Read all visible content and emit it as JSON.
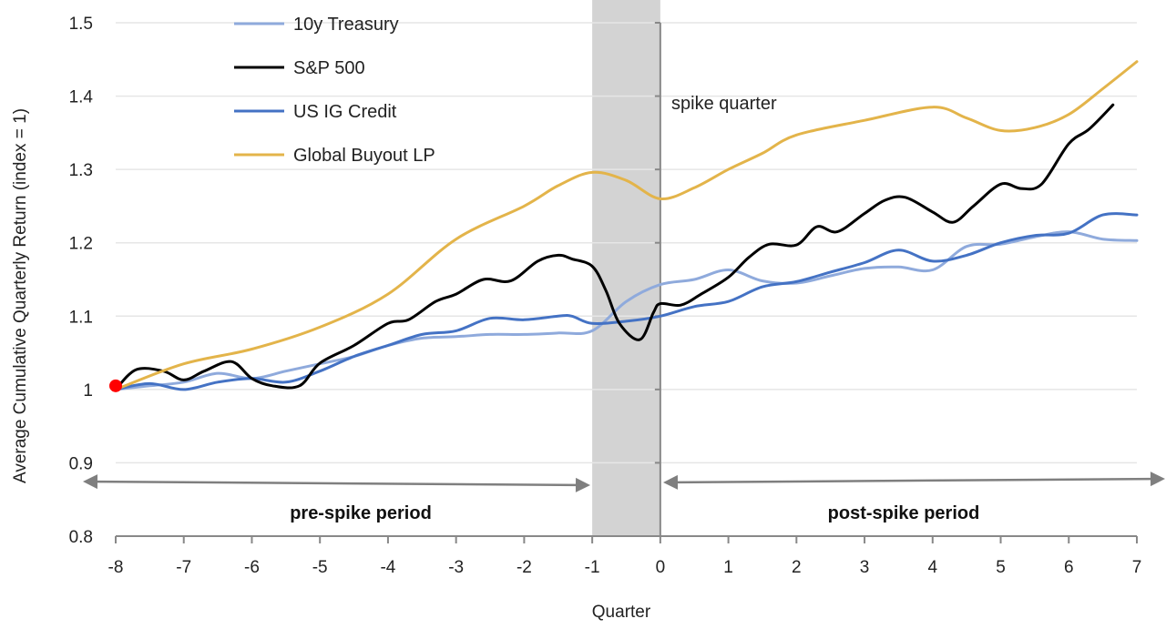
{
  "chart_data": {
    "type": "line",
    "title": "",
    "xlabel": "Quarter",
    "ylabel": "Average Cumulative Quarterly Return (index = 1)",
    "xlim": [
      -8,
      7
    ],
    "ylim": [
      0.8,
      1.5
    ],
    "x_ticks": [
      "-8",
      "-7",
      "-6",
      "-5",
      "-4",
      "-3",
      "-2",
      "-1",
      "0",
      "1",
      "2",
      "3",
      "4",
      "5",
      "6",
      "7"
    ],
    "y_ticks": [
      "0.8",
      "0.9",
      "1",
      "1.1",
      "1.2",
      "1.3",
      "1.4",
      "1.5"
    ],
    "grid": "horizontal",
    "legend_position": "top-left",
    "shaded_band": {
      "x_start": -1,
      "x_end": 0,
      "color": "#d3d3d3"
    },
    "start_marker": {
      "x": -8,
      "y": 1.0,
      "color": "#ff0000"
    },
    "annotations": {
      "spike": "spike quarter",
      "pre": "pre-spike period",
      "post": "post-spike period"
    },
    "series": [
      {
        "name": "10y Treasury",
        "color": "#8faadc",
        "points": [
          [
            -8,
            1.0
          ],
          [
            -7.5,
            1.005
          ],
          [
            -7,
            1.01
          ],
          [
            -6.5,
            1.022
          ],
          [
            -6,
            1.015
          ],
          [
            -5.5,
            1.025
          ],
          [
            -5,
            1.035
          ],
          [
            -4.5,
            1.045
          ],
          [
            -4,
            1.06
          ],
          [
            -3.5,
            1.07
          ],
          [
            -3,
            1.072
          ],
          [
            -2.5,
            1.075
          ],
          [
            -2,
            1.075
          ],
          [
            -1.5,
            1.077
          ],
          [
            -1,
            1.08
          ],
          [
            -0.5,
            1.12
          ],
          [
            0,
            1.143
          ],
          [
            0.5,
            1.15
          ],
          [
            1,
            1.163
          ],
          [
            1.5,
            1.148
          ],
          [
            2,
            1.145
          ],
          [
            2.5,
            1.155
          ],
          [
            3,
            1.165
          ],
          [
            3.5,
            1.167
          ],
          [
            4,
            1.163
          ],
          [
            4.5,
            1.195
          ],
          [
            5,
            1.198
          ],
          [
            5.5,
            1.208
          ],
          [
            6,
            1.215
          ],
          [
            6.5,
            1.205
          ],
          [
            7,
            1.203
          ]
        ]
      },
      {
        "name": "S&P 500",
        "color": "#000000",
        "points": [
          [
            -8,
            1.0
          ],
          [
            -7.7,
            1.027
          ],
          [
            -7.3,
            1.025
          ],
          [
            -7,
            1.013
          ],
          [
            -6.7,
            1.025
          ],
          [
            -6.3,
            1.038
          ],
          [
            -6,
            1.015
          ],
          [
            -5.7,
            1.005
          ],
          [
            -5.3,
            1.005
          ],
          [
            -5,
            1.036
          ],
          [
            -4.5,
            1.06
          ],
          [
            -4,
            1.09
          ],
          [
            -3.7,
            1.095
          ],
          [
            -3.3,
            1.12
          ],
          [
            -3,
            1.13
          ],
          [
            -2.6,
            1.15
          ],
          [
            -2.2,
            1.148
          ],
          [
            -1.8,
            1.175
          ],
          [
            -1.5,
            1.183
          ],
          [
            -1.3,
            1.178
          ],
          [
            -1,
            1.168
          ],
          [
            -0.8,
            1.135
          ],
          [
            -0.6,
            1.09
          ],
          [
            -0.3,
            1.068
          ],
          [
            -0.1,
            1.105
          ],
          [
            0,
            1.117
          ],
          [
            0.3,
            1.115
          ],
          [
            0.6,
            1.13
          ],
          [
            1,
            1.153
          ],
          [
            1.3,
            1.18
          ],
          [
            1.6,
            1.198
          ],
          [
            2,
            1.197
          ],
          [
            2.3,
            1.222
          ],
          [
            2.6,
            1.215
          ],
          [
            3,
            1.24
          ],
          [
            3.3,
            1.258
          ],
          [
            3.6,
            1.262
          ],
          [
            4,
            1.242
          ],
          [
            4.3,
            1.228
          ],
          [
            4.6,
            1.25
          ],
          [
            5,
            1.28
          ],
          [
            5.3,
            1.274
          ],
          [
            5.6,
            1.28
          ],
          [
            6,
            1.335
          ],
          [
            6.3,
            1.355
          ],
          [
            6.65,
            1.388
          ]
        ]
      },
      {
        "name": "US IG Credit",
        "color": "#4472c4",
        "points": [
          [
            -8,
            1.0
          ],
          [
            -7.5,
            1.008
          ],
          [
            -7,
            1.0
          ],
          [
            -6.5,
            1.01
          ],
          [
            -6,
            1.015
          ],
          [
            -5.5,
            1.01
          ],
          [
            -5,
            1.025
          ],
          [
            -4.5,
            1.045
          ],
          [
            -4,
            1.06
          ],
          [
            -3.5,
            1.075
          ],
          [
            -3,
            1.08
          ],
          [
            -2.5,
            1.097
          ],
          [
            -2,
            1.095
          ],
          [
            -1.5,
            1.1
          ],
          [
            -1.3,
            1.1
          ],
          [
            -1,
            1.09
          ],
          [
            -0.5,
            1.093
          ],
          [
            0,
            1.1
          ],
          [
            0.5,
            1.113
          ],
          [
            1,
            1.12
          ],
          [
            1.5,
            1.14
          ],
          [
            2,
            1.147
          ],
          [
            2.5,
            1.16
          ],
          [
            3,
            1.173
          ],
          [
            3.5,
            1.19
          ],
          [
            4,
            1.175
          ],
          [
            4.5,
            1.183
          ],
          [
            5,
            1.2
          ],
          [
            5.5,
            1.21
          ],
          [
            6,
            1.213
          ],
          [
            6.5,
            1.238
          ],
          [
            7,
            1.238
          ]
        ]
      },
      {
        "name": "Global Buyout LP",
        "color": "#e3b44a",
        "points": [
          [
            -8,
            1.0
          ],
          [
            -7,
            1.035
          ],
          [
            -6,
            1.055
          ],
          [
            -5,
            1.085
          ],
          [
            -4,
            1.13
          ],
          [
            -3,
            1.205
          ],
          [
            -2,
            1.25
          ],
          [
            -1.5,
            1.278
          ],
          [
            -1,
            1.296
          ],
          [
            -0.5,
            1.285
          ],
          [
            0,
            1.26
          ],
          [
            0.5,
            1.275
          ],
          [
            1,
            1.3
          ],
          [
            1.5,
            1.322
          ],
          [
            2,
            1.347
          ],
          [
            3,
            1.367
          ],
          [
            4,
            1.385
          ],
          [
            4.5,
            1.37
          ],
          [
            5,
            1.353
          ],
          [
            5.5,
            1.357
          ],
          [
            6,
            1.375
          ],
          [
            6.5,
            1.41
          ],
          [
            7,
            1.447
          ]
        ]
      }
    ]
  }
}
